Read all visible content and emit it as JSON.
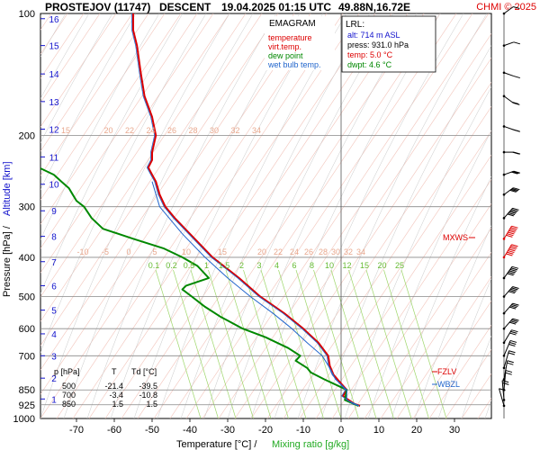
{
  "header": {
    "station": "PROSTEJOV (11747)",
    "type": "DESCENT",
    "datetime": "19.04.2025 01:15 UTC",
    "coords": "49.88N,16.72E",
    "credit": "CHMI © 2025"
  },
  "legend_box": {
    "title": "EMAGRAM",
    "items": [
      {
        "label": "temperature",
        "color": "#dd0000"
      },
      {
        "label": "virt.temp.",
        "color": "#dd0000"
      },
      {
        "label": "dew point",
        "color": "#008800"
      },
      {
        "label": "wet bulb temp.",
        "color": "#2266cc"
      }
    ]
  },
  "lrl_box": {
    "title": "LRL:",
    "lines": [
      {
        "text": "alt: 714 m ASL",
        "color": "#1111cc"
      },
      {
        "text": "press: 931.0 hPa",
        "color": "#000000"
      },
      {
        "text": "temp: 5.0 °C",
        "color": "#dd0000"
      },
      {
        "text": "dwpt: 4.6 °C",
        "color": "#008800"
      }
    ]
  },
  "table": {
    "headers": [
      "p [hPa]",
      "T",
      "Td [°C]"
    ],
    "rows": [
      [
        "500",
        "-21.4",
        "-39.5"
      ],
      [
        "700",
        "-3.4",
        "-10.8"
      ],
      [
        "850",
        "1.5",
        "1.5"
      ]
    ]
  },
  "markers": {
    "mxws": "MXWS",
    "fzlv": "FZLV",
    "wbzl": "WBZL"
  },
  "axis": {
    "ylabel": "Pressure [hPa]  /",
    "ylabel2": "Altitude [km]",
    "xlabel": "Temperature [°C]  /",
    "xlabel2": "Mixing ratio [g/kg]"
  },
  "chart_data": {
    "type": "line",
    "title": "PROSTEJOV (11747)   DESCENT   19.04.2025 01:15 UTC  49.88N,16.72E",
    "xlabel": "Temperature [°C]  /  Mixing ratio [g/kg]",
    "ylabel": "Pressure [hPa]  /  Altitude [km]",
    "xlim": [
      -80,
      40
    ],
    "ylim": [
      1000,
      100
    ],
    "y_scale": "log",
    "x_ticks": [
      -70,
      -60,
      -50,
      -40,
      -30,
      -20,
      -10,
      0,
      10,
      20,
      30
    ],
    "p_ticks": [
      100,
      200,
      300,
      400,
      500,
      600,
      700,
      850,
      925,
      1000
    ],
    "alt_ticks": [
      {
        "km": 1,
        "p": 895
      },
      {
        "km": 2,
        "p": 795
      },
      {
        "km": 3,
        "p": 700
      },
      {
        "km": 4,
        "p": 618
      },
      {
        "km": 5,
        "p": 540
      },
      {
        "km": 6,
        "p": 470
      },
      {
        "km": 7,
        "p": 410
      },
      {
        "km": 8,
        "p": 355
      },
      {
        "km": 9,
        "p": 307
      },
      {
        "km": 10,
        "p": 264
      },
      {
        "km": 11,
        "p": 226
      },
      {
        "km": 12,
        "p": 193
      },
      {
        "km": 13,
        "p": 165
      },
      {
        "km": 14,
        "p": 141
      },
      {
        "km": 15,
        "p": 120
      },
      {
        "km": 16,
        "p": 103
      }
    ],
    "theta_labels": [
      "15",
      "20",
      "22",
      "24",
      "26",
      "28",
      "30",
      "32",
      "34"
    ],
    "thetae_labels": [
      "-10",
      "-5",
      "0",
      "5",
      "10",
      "15",
      "20",
      "22",
      "24",
      "26",
      "28",
      "30",
      "32",
      "34"
    ],
    "mixing_ratio_labels": [
      "0.1",
      "0.2",
      "0.5",
      "1",
      "1.5",
      "2",
      "3",
      "4",
      "6",
      "8",
      "10",
      "12",
      "15",
      "20",
      "25"
    ],
    "series": [
      {
        "name": "temperature",
        "color": "#dd0000",
        "p": [
          931,
          920,
          900,
          880,
          850,
          820,
          780,
          740,
          700,
          650,
          600,
          550,
          500,
          450,
          400,
          350,
          320,
          300,
          280,
          260,
          250,
          240,
          230,
          220,
          200,
          180,
          160,
          140,
          120,
          110,
          100
        ],
        "t": [
          5,
          3.5,
          2,
          0.5,
          1.5,
          0,
          -2,
          -3,
          -3.4,
          -6,
          -10,
          -15,
          -21.4,
          -27,
          -34,
          -40,
          -44,
          -46.5,
          -48,
          -49,
          -50,
          -51,
          -50,
          -50,
          -49,
          -50,
          -52,
          -53,
          -54,
          -55,
          -55
        ]
      },
      {
        "name": "dew point",
        "color": "#008800",
        "p": [
          931,
          900,
          850,
          800,
          770,
          750,
          720,
          700,
          670,
          630,
          600,
          560,
          530,
          500,
          480,
          470,
          460,
          450,
          420,
          400,
          380,
          360,
          340,
          320,
          300,
          290,
          280,
          270,
          260,
          250,
          240
        ],
        "t": [
          4.6,
          1,
          1.5,
          -4.5,
          -8,
          -9,
          -12,
          -10.8,
          -14,
          -20,
          -26,
          -32,
          -36,
          -39.5,
          -42,
          -41,
          -38,
          -35,
          -38,
          -42,
          -47,
          -55,
          -63,
          -66,
          -68,
          -70,
          -71,
          -72,
          -74,
          -76,
          -80
        ]
      },
      {
        "name": "wet bulb temp.",
        "color": "#2266cc",
        "p": [
          931,
          900,
          850,
          800,
          750,
          700,
          650,
          600,
          550,
          500,
          450,
          400,
          350,
          300,
          260
        ],
        "t": [
          4.8,
          1.5,
          1.5,
          -1.5,
          -3,
          -5,
          -9,
          -13,
          -18,
          -24,
          -30,
          -36,
          -42,
          -48,
          -50
        ]
      }
    ],
    "wind_profile": [
      {
        "p": 930,
        "dir": 150,
        "kt": 10
      },
      {
        "p": 900,
        "dir": 170,
        "kt": 15
      },
      {
        "p": 850,
        "dir": 190,
        "kt": 20
      },
      {
        "p": 800,
        "dir": 200,
        "kt": 20
      },
      {
        "p": 750,
        "dir": 210,
        "kt": 20
      },
      {
        "p": 700,
        "dir": 220,
        "kt": 25
      },
      {
        "p": 650,
        "dir": 230,
        "kt": 30
      },
      {
        "p": 600,
        "dir": 240,
        "kt": 35
      },
      {
        "p": 550,
        "dir": 240,
        "kt": 40
      },
      {
        "p": 500,
        "dir": 240,
        "kt": 45
      },
      {
        "p": 450,
        "dir": 235,
        "kt": 55
      },
      {
        "p": 400,
        "dir": 230,
        "kt": 70
      },
      {
        "p": 360,
        "dir": 230,
        "kt": 75
      },
      {
        "p": 320,
        "dir": 240,
        "kt": 55
      },
      {
        "p": 280,
        "dir": 250,
        "kt": 40
      },
      {
        "p": 250,
        "dir": 260,
        "kt": 30
      },
      {
        "p": 220,
        "dir": 270,
        "kt": 20
      },
      {
        "p": 190,
        "dir": 280,
        "kt": 15
      },
      {
        "p": 160,
        "dir": 290,
        "kt": 15
      },
      {
        "p": 140,
        "dir": 280,
        "kt": 10
      },
      {
        "p": 120,
        "dir": 260,
        "kt": 10
      },
      {
        "p": 100,
        "dir": 250,
        "kt": 10
      }
    ],
    "marker_levels": {
      "mxws_p": 362,
      "fzlv_p": 780,
      "wbzl_p": 805
    },
    "grid": true,
    "legend_placement": "top-right"
  }
}
